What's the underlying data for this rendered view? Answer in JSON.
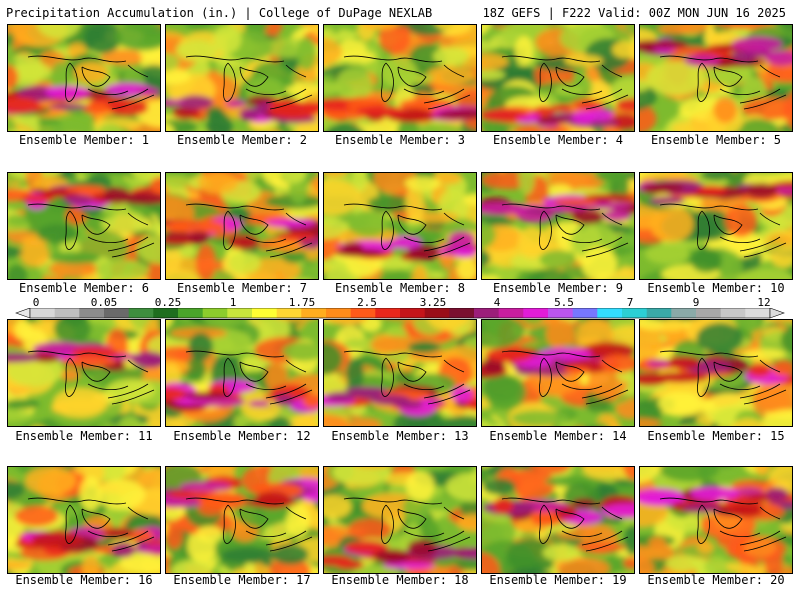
{
  "header": {
    "title_left": "Precipitation Accumulation (in.) | College of DuPage NEXLAB",
    "title_right": "18Z GEFS | F222 Valid: 00Z MON JUN 16 2025"
  },
  "colorbar": {
    "labels": [
      "0",
      "0.05",
      "0.25",
      "1",
      "1.75",
      "2.5",
      "3.25",
      "4",
      "5.5",
      "7",
      "9",
      "12"
    ],
    "colors": [
      "#d8d8d8",
      "#bfbfbf",
      "#8c8c8c",
      "#6a6a6a",
      "#3e8e3e",
      "#1f6e1f",
      "#4aa42a",
      "#8ccc2c",
      "#c8e63c",
      "#ffff33",
      "#ffd633",
      "#ffad1f",
      "#ff8c1a",
      "#ff5a1a",
      "#e8271b",
      "#c4141a",
      "#9a0d18",
      "#7a1030",
      "#9c1e7a",
      "#c81ea0",
      "#e21cd8",
      "#bb55ee",
      "#7777ff",
      "#33ddff",
      "#2ccfd4",
      "#3aaaa8",
      "#8aaaa8",
      "#a8a8a8",
      "#c8c8c8",
      "#dcdcdc"
    ]
  },
  "members": [
    {
      "label": "Ensemble Member: 1"
    },
    {
      "label": "Ensemble Member: 2"
    },
    {
      "label": "Ensemble Member: 3"
    },
    {
      "label": "Ensemble Member: 4"
    },
    {
      "label": "Ensemble Member: 5"
    },
    {
      "label": "Ensemble Member: 6"
    },
    {
      "label": "Ensemble Member: 7"
    },
    {
      "label": "Ensemble Member: 8"
    },
    {
      "label": "Ensemble Member: 9"
    },
    {
      "label": "Ensemble Member: 10"
    },
    {
      "label": "Ensemble Member: 11"
    },
    {
      "label": "Ensemble Member: 12"
    },
    {
      "label": "Ensemble Member: 13"
    },
    {
      "label": "Ensemble Member: 14"
    },
    {
      "label": "Ensemble Member: 15"
    },
    {
      "label": "Ensemble Member: 16"
    },
    {
      "label": "Ensemble Member: 17"
    },
    {
      "label": "Ensemble Member: 18"
    },
    {
      "label": "Ensemble Member: 19"
    },
    {
      "label": "Ensemble Member: 20"
    }
  ]
}
